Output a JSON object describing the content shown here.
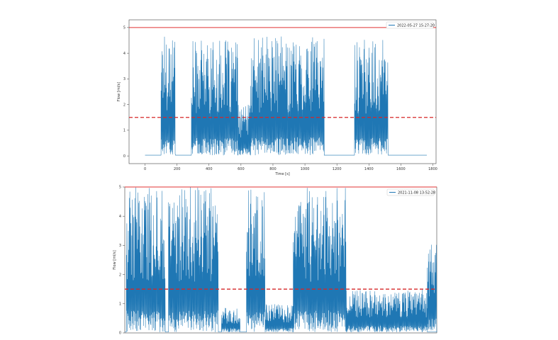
{
  "chart_data": [
    {
      "type": "line",
      "legend": {
        "position": "top-right",
        "entries": [
          "2022-05-27 15:27:20"
        ]
      },
      "xlabel": "Time [s]",
      "ylabel": "Flow [ml/s]",
      "xlim": [
        -100,
        1820
      ],
      "ylim": [
        -0.3,
        5.3
      ],
      "xticks": [
        "0",
        "200",
        "400",
        "600",
        "800",
        "1000",
        "1200",
        "1400",
        "1600",
        "1800"
      ],
      "yticks": [
        "0",
        "1",
        "2",
        "3",
        "4",
        "5"
      ],
      "hlines": [
        {
          "y": 5.0,
          "style": "solid",
          "color": "#e03030"
        },
        {
          "y": 1.5,
          "style": "dashed",
          "color": "#d62728"
        }
      ],
      "series": [
        {
          "name": "2022-05-27 15:27:20",
          "color": "#1f77b4",
          "bursts": [
            {
              "x_start": 100,
              "x_end": 190,
              "peak": 5.0
            },
            {
              "x_start": 290,
              "x_end": 580,
              "peak": 4.5
            },
            {
              "x_start": 580,
              "x_end": 660,
              "peak": 2.0
            },
            {
              "x_start": 660,
              "x_end": 1120,
              "peak": 4.7
            },
            {
              "x_start": 1310,
              "x_end": 1520,
              "peak": 4.6
            }
          ]
        }
      ]
    },
    {
      "type": "line",
      "legend": {
        "position": "top-right",
        "entries": [
          "2021-11-08 13:52:28"
        ]
      },
      "xlabel": "",
      "ylabel": "Flow [ml/s]",
      "xlim": [
        0,
        1000
      ],
      "ylim": [
        0,
        5
      ],
      "xticks": [],
      "yticks": [
        "0",
        "1",
        "2",
        "3",
        "4",
        "5"
      ],
      "hlines": [
        {
          "y": 5.0,
          "style": "solid",
          "color": "#e03030"
        },
        {
          "y": 1.5,
          "style": "dashed",
          "color": "#d62728"
        }
      ],
      "series": [
        {
          "name": "2021-11-08 13:52:28",
          "color": "#1f77b4",
          "bursts": [
            {
              "x_start": 5,
              "x_end": 130,
              "peak": 5.0
            },
            {
              "x_start": 140,
              "x_end": 300,
              "peak": 5.0
            },
            {
              "x_start": 310,
              "x_end": 370,
              "peak": 0.9
            },
            {
              "x_start": 390,
              "x_end": 450,
              "peak": 5.0
            },
            {
              "x_start": 450,
              "x_end": 540,
              "peak": 1.0
            },
            {
              "x_start": 540,
              "x_end": 710,
              "peak": 5.0
            },
            {
              "x_start": 710,
              "x_end": 970,
              "peak": 1.5
            },
            {
              "x_start": 970,
              "x_end": 1000,
              "peak": 3.1
            }
          ]
        }
      ]
    }
  ]
}
